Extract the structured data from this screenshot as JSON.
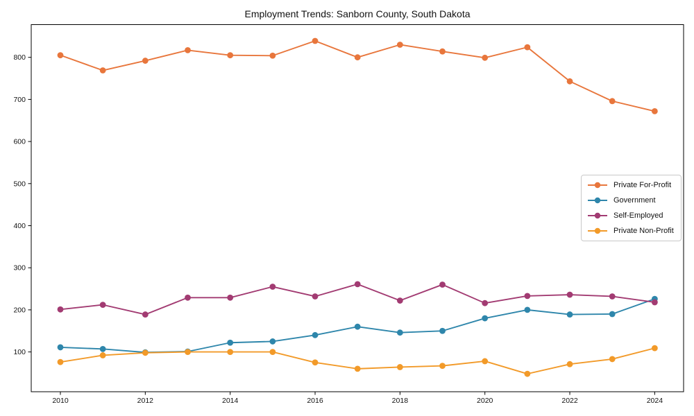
{
  "chart_data": {
    "type": "line",
    "title": "Employment Trends: Sanborn County, South Dakota",
    "xlabel": "",
    "ylabel": "",
    "x": [
      2010,
      2011,
      2012,
      2013,
      2014,
      2015,
      2016,
      2017,
      2018,
      2019,
      2020,
      2021,
      2022,
      2023,
      2024
    ],
    "xticks": [
      2010,
      2012,
      2014,
      2016,
      2018,
      2020,
      2022,
      2024
    ],
    "yticks": [
      100,
      200,
      300,
      400,
      500,
      600,
      700,
      800
    ],
    "ylim": [
      8,
      879
    ],
    "grid": false,
    "legend_position": "center-right",
    "series": [
      {
        "name": "Private For-Profit",
        "color": "#E8763C",
        "values": [
          805,
          769,
          792,
          817,
          805,
          804,
          839,
          800,
          830,
          814,
          799,
          824,
          743,
          696,
          672
        ]
      },
      {
        "name": "Government",
        "color": "#2E86AB",
        "values": [
          111,
          107,
          99,
          101,
          122,
          125,
          140,
          160,
          146,
          150,
          180,
          200,
          189,
          190,
          226
        ]
      },
      {
        "name": "Self-Employed",
        "color": "#A23B72",
        "values": [
          201,
          212,
          189,
          229,
          229,
          255,
          232,
          261,
          222,
          260,
          216,
          233,
          236,
          232,
          218
        ]
      },
      {
        "name": "Private Non-Profit",
        "color": "#F29A29",
        "values": [
          76,
          92,
          98,
          100,
          100,
          100,
          75,
          60,
          64,
          67,
          78,
          48,
          71,
          83,
          109
        ]
      }
    ]
  }
}
